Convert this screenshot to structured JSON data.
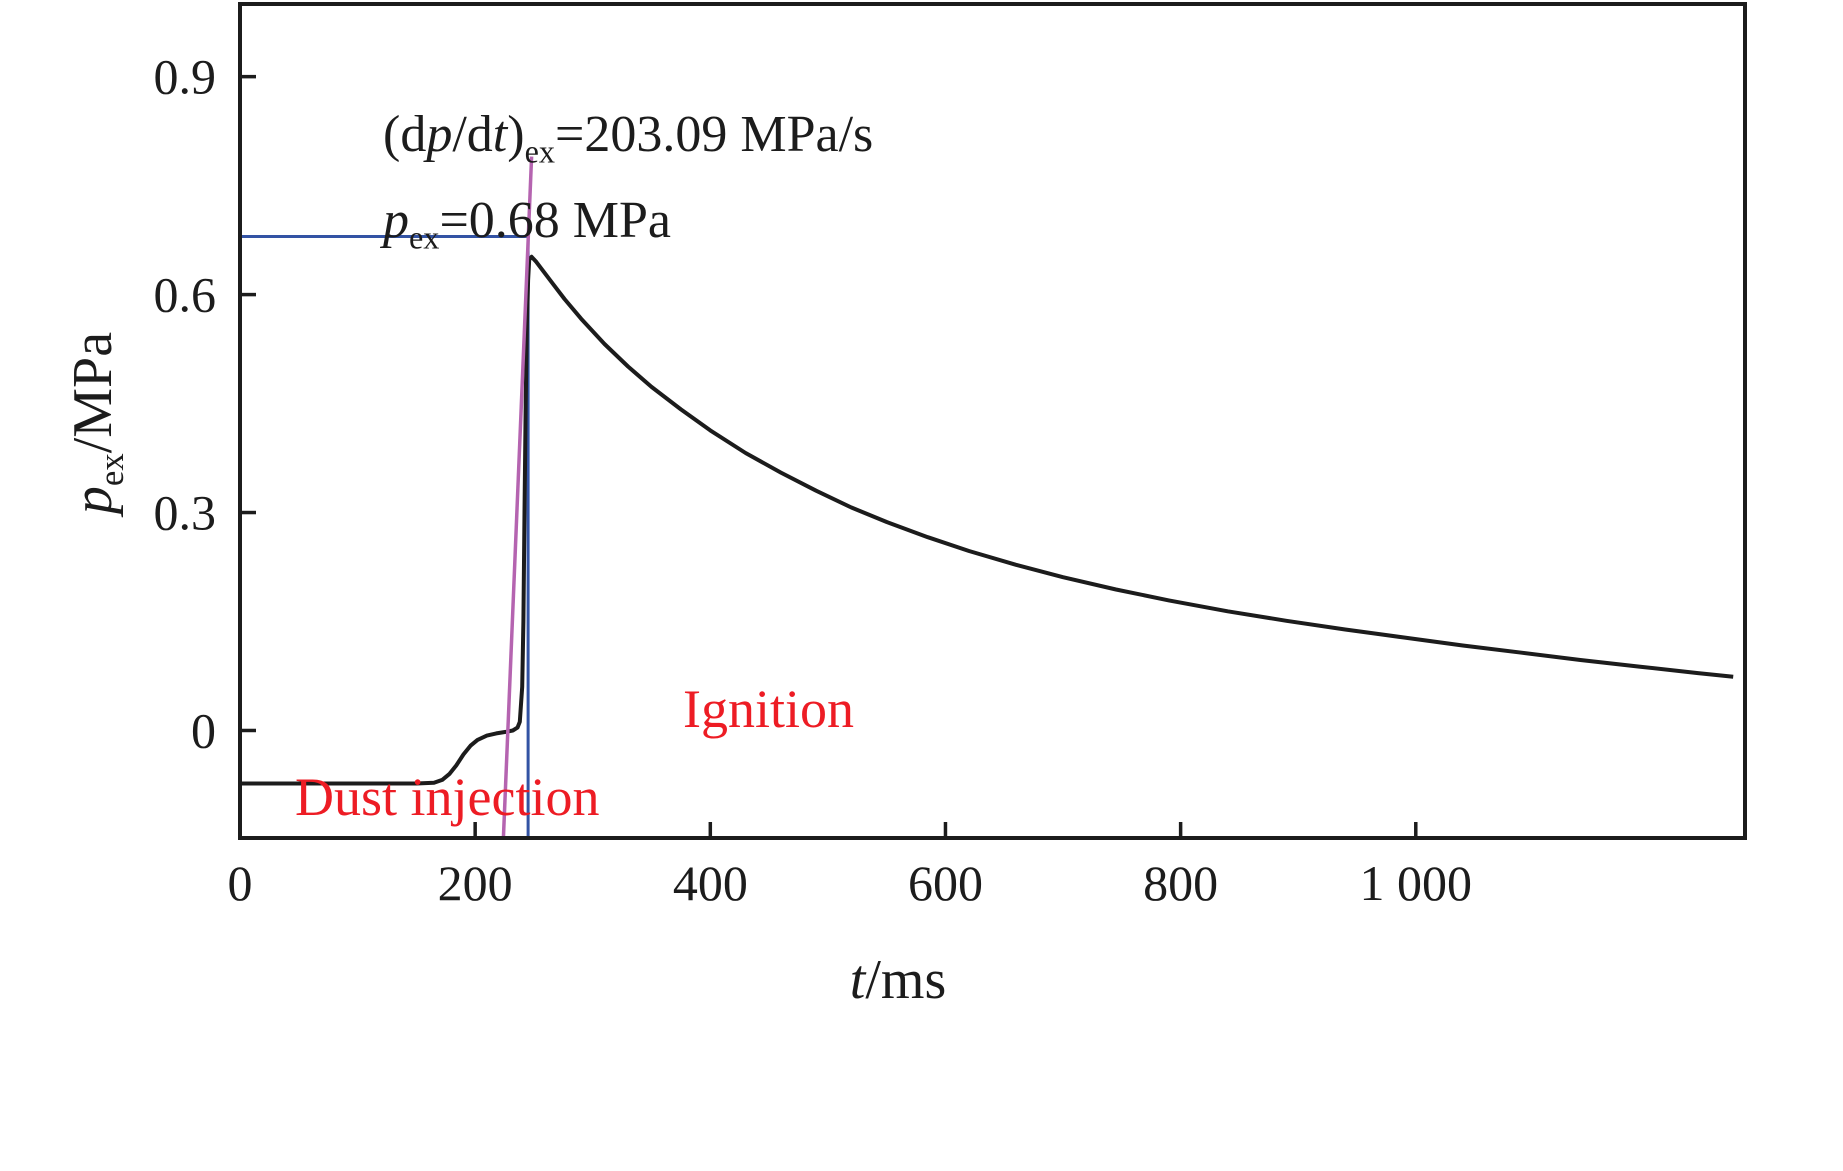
{
  "colors": {
    "axis": "#1c1c1c",
    "curve": "#1c1c1c",
    "pex_marker_blue": "#3353a4",
    "tangent_magenta": "#b564b0",
    "label_red": "#ed1c24"
  },
  "key_values": {
    "p_ex_MPa": 0.68,
    "dpdt_ex_MPa_per_s": 203.09
  },
  "chart_data": {
    "type": "line",
    "title": "",
    "xlabel": {
      "var": "t",
      "rest": "/ms"
    },
    "ylabel": {
      "var": "p",
      "sub": "ex",
      "rest": "/MPa"
    },
    "xlim": [
      0,
      1280
    ],
    "ylim": [
      -0.148,
      1.0
    ],
    "x_ticks": [
      0,
      200,
      400,
      600,
      800,
      1000
    ],
    "x_tick_labels": [
      "0",
      "200",
      "400",
      "600",
      "800",
      "1 000"
    ],
    "y_ticks": [
      0,
      0.3,
      0.6,
      0.9
    ],
    "y_tick_labels": [
      "0",
      "0.3",
      "0.6",
      "0.9"
    ],
    "grid": false,
    "legend": null,
    "series": [
      {
        "name": "pex-reference",
        "color": "#3353a4",
        "width": 3,
        "points": [
          [
            0,
            0.68
          ],
          [
            245,
            0.68
          ],
          [
            245,
            -0.148
          ]
        ]
      },
      {
        "name": "pressure-trace",
        "color": "#1c1c1c",
        "width": 4,
        "points": [
          [
            0,
            -0.073
          ],
          [
            150,
            -0.073
          ],
          [
            165,
            -0.072
          ],
          [
            172,
            -0.068
          ],
          [
            178,
            -0.06
          ],
          [
            184,
            -0.048
          ],
          [
            190,
            -0.033
          ],
          [
            196,
            -0.021
          ],
          [
            202,
            -0.013
          ],
          [
            210,
            -0.007
          ],
          [
            218,
            -0.004
          ],
          [
            226,
            -0.002
          ],
          [
            232,
            0
          ],
          [
            236,
            0.004
          ],
          [
            238,
            0.012
          ],
          [
            240,
            0.06
          ],
          [
            241,
            0.15
          ],
          [
            242,
            0.3
          ],
          [
            243,
            0.45
          ],
          [
            244,
            0.56
          ],
          [
            245,
            0.62
          ],
          [
            246,
            0.648
          ],
          [
            248,
            0.652
          ],
          [
            252,
            0.645
          ],
          [
            258,
            0.632
          ],
          [
            266,
            0.615
          ],
          [
            276,
            0.594
          ],
          [
            290,
            0.567
          ],
          [
            310,
            0.532
          ],
          [
            330,
            0.501
          ],
          [
            350,
            0.473
          ],
          [
            375,
            0.442
          ],
          [
            400,
            0.413
          ],
          [
            430,
            0.382
          ],
          [
            460,
            0.355
          ],
          [
            490,
            0.33
          ],
          [
            520,
            0.307
          ],
          [
            550,
            0.287
          ],
          [
            585,
            0.266
          ],
          [
            620,
            0.247
          ],
          [
            660,
            0.228
          ],
          [
            700,
            0.211
          ],
          [
            745,
            0.194
          ],
          [
            790,
            0.179
          ],
          [
            840,
            0.164
          ],
          [
            890,
            0.151
          ],
          [
            940,
            0.139
          ],
          [
            990,
            0.128
          ],
          [
            1040,
            0.117
          ],
          [
            1090,
            0.107
          ],
          [
            1140,
            0.097
          ],
          [
            1190,
            0.088
          ],
          [
            1240,
            0.079
          ],
          [
            1270,
            0.074
          ]
        ]
      },
      {
        "name": "dpdt-tangent",
        "color": "#b564b0",
        "width": 3.5,
        "points": [
          [
            224,
            -0.148
          ],
          [
            248,
            0.79
          ]
        ]
      }
    ],
    "annotations": {
      "dpdt_line": {
        "pre": "(d",
        "p": "p",
        "mid": "/d",
        "t": "t",
        "close": ")",
        "sub": "ex",
        "value": "=203.09 MPa/s"
      },
      "pex_line": {
        "p": "p",
        "sub": "ex",
        "value": "=0.68 MPa"
      },
      "ignition": "Ignition",
      "dust_injection": "Dust injection"
    }
  }
}
